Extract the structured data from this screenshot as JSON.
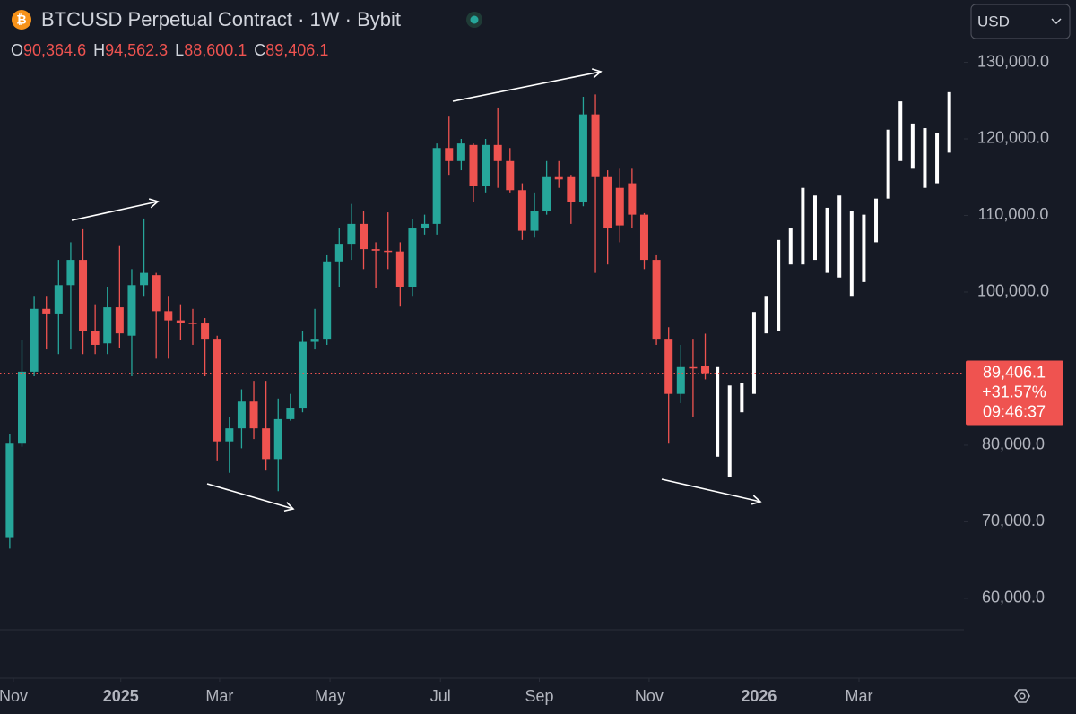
{
  "chart_data": {
    "type": "candlestick",
    "title": "BTCUSD Perpetual Contract · 1W · Bybit",
    "ohlc_legend": [
      {
        "key": "O",
        "value": "90,364.6"
      },
      {
        "key": "H",
        "value": "94,562.3"
      },
      {
        "key": "L",
        "value": "88,600.1"
      },
      {
        "key": "C",
        "value": "89,406.1"
      }
    ],
    "currency": "USD",
    "up_color": "#26a69a",
    "down_color": "#ef5350",
    "projection_color": "#ffffff",
    "candles": {
      "x": [
        0,
        1,
        2,
        3,
        4,
        5,
        6,
        7,
        8,
        9,
        10,
        11,
        12,
        13,
        14,
        15,
        16,
        17,
        18,
        19,
        20,
        21,
        22,
        23,
        24,
        25,
        26,
        27,
        28,
        29,
        30,
        31,
        32,
        33,
        34,
        35,
        36,
        37,
        38,
        39,
        40,
        41,
        42,
        43,
        44,
        45,
        46,
        47,
        48,
        49,
        50,
        51,
        52,
        53,
        54,
        55,
        56,
        57
      ],
      "open": [
        68000,
        80200,
        89600,
        97800,
        97200,
        100900,
        104200,
        94900,
        93300,
        98000,
        94300,
        100900,
        102200,
        97500,
        96300,
        96000,
        95900,
        93900,
        80500,
        82200,
        85700,
        82200,
        78200,
        83400,
        84900,
        93500,
        93900,
        104000,
        106300,
        108900,
        105600,
        105400,
        105300,
        100700,
        108300,
        108900,
        118800,
        117100,
        119200,
        113800,
        119200,
        117100,
        113300,
        108000,
        110600,
        115000,
        115000,
        111800,
        123200,
        115000,
        113600,
        114200,
        110100,
        104200,
        93900,
        86700,
        90200,
        90364.6
      ],
      "high": [
        81400,
        93700,
        99500,
        99500,
        104200,
        106500,
        108200,
        98400,
        100700,
        106000,
        103000,
        109600,
        102500,
        99500,
        98400,
        97800,
        96600,
        94300,
        83700,
        87300,
        88400,
        88400,
        86100,
        86700,
        94900,
        97800,
        104800,
        108300,
        111500,
        110600,
        106500,
        110400,
        106500,
        109500,
        110100,
        119400,
        122900,
        120000,
        119400,
        120000,
        124100,
        118800,
        114200,
        113000,
        117100,
        117100,
        115300,
        125500,
        125800,
        115900,
        116100,
        116100,
        110300,
        104800,
        95400,
        93100,
        93900,
        94562.3
      ],
      "low": [
        66500,
        79800,
        89000,
        92500,
        91900,
        92500,
        91900,
        91900,
        91900,
        92700,
        89000,
        99500,
        91300,
        91300,
        93700,
        93100,
        89000,
        77900,
        76400,
        79600,
        80800,
        76700,
        74000,
        83200,
        84300,
        92500,
        93100,
        100700,
        104200,
        103000,
        100500,
        103000,
        98100,
        99500,
        107500,
        107500,
        115300,
        115900,
        111800,
        113000,
        113600,
        113000,
        106800,
        107100,
        110100,
        113600,
        108900,
        111200,
        102500,
        103600,
        106500,
        108300,
        103000,
        93100,
        80200,
        85500,
        83700,
        88600.1
      ],
      "close": [
        80200,
        89600,
        97800,
        97200,
        100900,
        104200,
        94900,
        93100,
        98000,
        94600,
        100900,
        102500,
        97500,
        96300,
        96000,
        95900,
        93900,
        80500,
        82200,
        85700,
        82200,
        78200,
        83400,
        84900,
        93500,
        93900,
        104000,
        106300,
        108900,
        105600,
        105400,
        105300,
        100700,
        108300,
        108900,
        118800,
        117100,
        119400,
        113800,
        119200,
        117100,
        113300,
        108000,
        110600,
        115000,
        114700,
        111800,
        123200,
        115000,
        108300,
        108700,
        110100,
        104200,
        93900,
        86700,
        90200,
        90100,
        89406.1
      ]
    },
    "projection": {
      "x": [
        58,
        59,
        60,
        61,
        62,
        63,
        64,
        65,
        66,
        67,
        68,
        69,
        70,
        71,
        72,
        73,
        74,
        75,
        76,
        77
      ],
      "high": [
        90200,
        87800,
        88100,
        97400,
        99500,
        106800,
        108300,
        113600,
        112600,
        111000,
        112600,
        110600,
        110100,
        112200,
        121200,
        124900,
        122000,
        121400,
        120800,
        126100
      ],
      "low": [
        78500,
        75900,
        84300,
        86700,
        94600,
        94900,
        103600,
        103600,
        104200,
        102500,
        101900,
        99500,
        101300,
        106500,
        112200,
        117100,
        116100,
        113600,
        114200,
        118200
      ]
    },
    "last_price": {
      "value": 89406.1,
      "label": "89,406.1",
      "change": "+31.57%",
      "countdown": "09:46:37"
    },
    "xlim": [
      -0.8,
      78.2
    ],
    "xticks": [
      {
        "value": 0.3,
        "label": "Nov"
      },
      {
        "value": 9.1,
        "label": "2025"
      },
      {
        "value": 17.2,
        "label": "Mar"
      },
      {
        "value": 26.25,
        "label": "May"
      },
      {
        "value": 35.3,
        "label": "Jul"
      },
      {
        "value": 43.4,
        "label": "Sep"
      },
      {
        "value": 52.4,
        "label": "Nov"
      },
      {
        "value": 61.4,
        "label": "2026"
      },
      {
        "value": 69.6,
        "label": "Mar"
      }
    ],
    "ylim": [
      55900,
      138130
    ],
    "yticks": [
      {
        "value": 60000,
        "label": "60,000.0"
      },
      {
        "value": 70000,
        "label": "70,000.0"
      },
      {
        "value": 80000,
        "label": "80,000.0"
      },
      {
        "value": 100000,
        "label": "100,000.0"
      },
      {
        "value": 110000,
        "label": "110,000.0"
      },
      {
        "value": 120000,
        "label": "120,000.0"
      },
      {
        "value": 130000,
        "label": "130,000.0"
      }
    ]
  }
}
